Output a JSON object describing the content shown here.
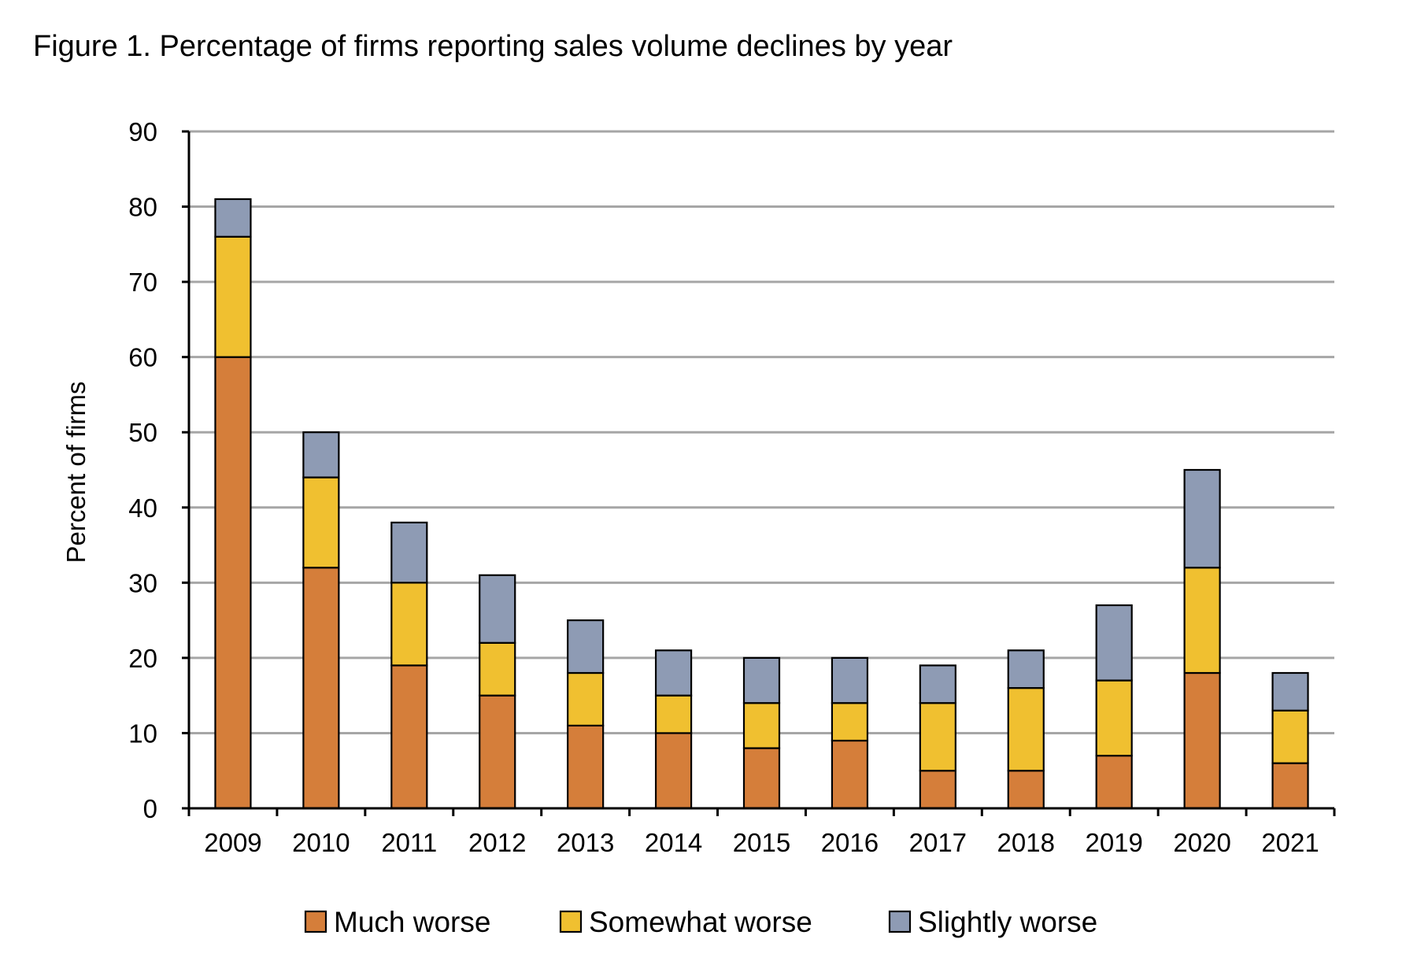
{
  "title": "Figure 1. Percentage of firms reporting sales volume declines by year",
  "chart_data": {
    "type": "bar",
    "stacked": true,
    "categories": [
      "2009",
      "2010",
      "2011",
      "2012",
      "2013",
      "2014",
      "2015",
      "2016",
      "2017",
      "2018",
      "2019",
      "2020",
      "2021"
    ],
    "series": [
      {
        "name": "Much worse",
        "color": "#D57E3A",
        "values": [
          60,
          32,
          19,
          15,
          11,
          10,
          8,
          9,
          5,
          5,
          7,
          18,
          6
        ]
      },
      {
        "name": "Somewhat worse",
        "color": "#F0C030",
        "values": [
          16,
          12,
          11,
          7,
          7,
          5,
          6,
          5,
          9,
          11,
          10,
          14,
          7
        ]
      },
      {
        "name": "Slightly worse",
        "color": "#8E9BB4",
        "values": [
          5,
          6,
          8,
          9,
          7,
          6,
          6,
          6,
          5,
          5,
          10,
          13,
          5
        ]
      }
    ],
    "title": "Figure 1. Percentage of firms reporting sales volume declines by year",
    "xlabel": "",
    "ylabel": "Percent of firms",
    "ylim": [
      0,
      90
    ],
    "yticks": [
      "0",
      "10",
      "20",
      "30",
      "40",
      "50",
      "60",
      "70",
      "80",
      "90"
    ],
    "grid": true,
    "legend_position": "bottom"
  }
}
